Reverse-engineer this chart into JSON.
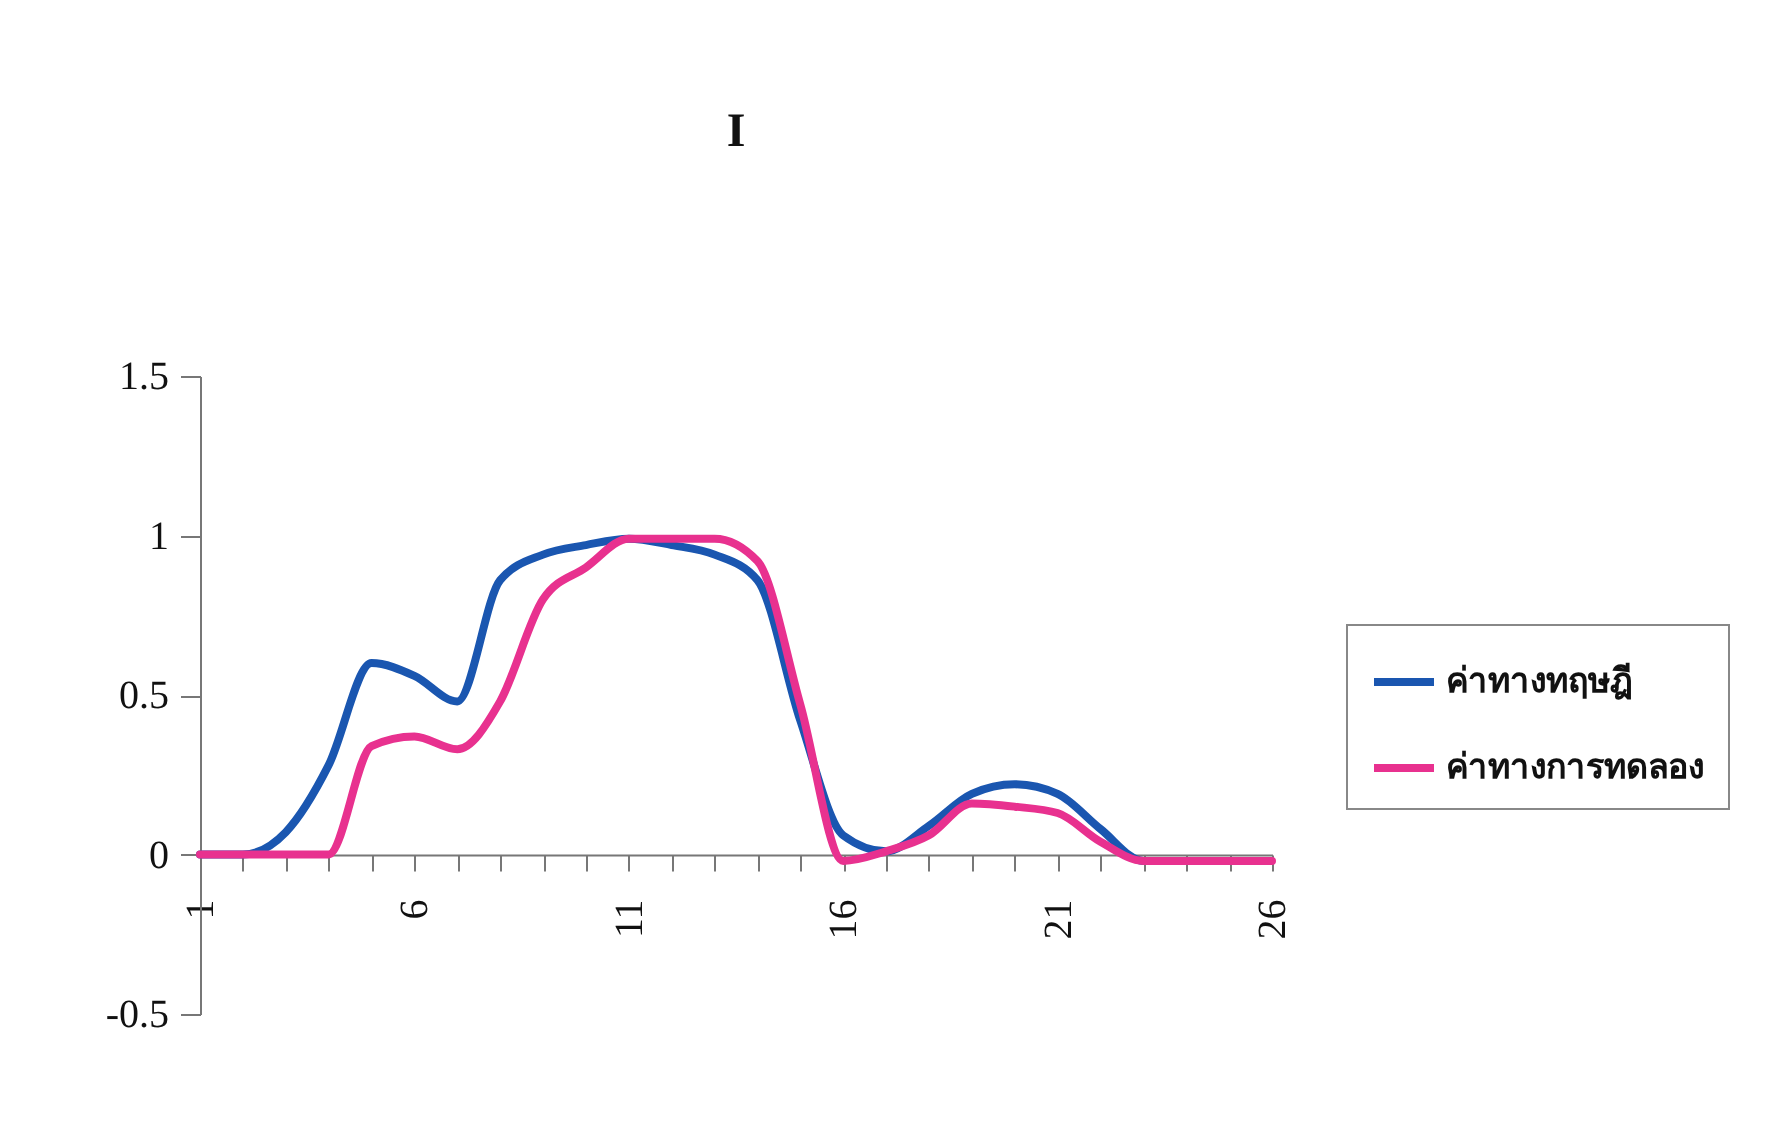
{
  "chart_data": {
    "type": "line",
    "title": "I",
    "x": [
      1,
      2,
      3,
      4,
      5,
      6,
      7,
      8,
      9,
      10,
      11,
      12,
      13,
      14,
      15,
      16,
      17,
      18,
      19,
      20,
      21,
      22,
      23,
      24,
      25,
      26
    ],
    "series": [
      {
        "name": "ค่าทางทฤษฎี",
        "color": "#1a56b0",
        "values": [
          0,
          0,
          0.07,
          0.28,
          0.6,
          0.56,
          0.48,
          0.86,
          0.94,
          0.97,
          0.99,
          0.97,
          0.94,
          0.86,
          0.42,
          0.06,
          0.01,
          0.09,
          0.19,
          0.22,
          0.19,
          0.08,
          -0.02,
          -0.02,
          null,
          null
        ]
      },
      {
        "name": "ค่าทางการทดลอง",
        "color": "#e8318f",
        "values": [
          0,
          0,
          0,
          0,
          0.34,
          0.37,
          0.33,
          0.48,
          0.8,
          0.9,
          0.99,
          0.99,
          0.99,
          0.92,
          0.47,
          -0.02,
          0.01,
          0.06,
          0.16,
          0.15,
          0.13,
          0.04,
          -0.02,
          -0.02,
          -0.02,
          -0.02
        ]
      }
    ],
    "xlim": [
      1,
      26
    ],
    "xticks": [
      1,
      {
        "value": 2,
        "label": null
      },
      {
        "value": 3,
        "label": null
      },
      {
        "value": 4,
        "label": null
      },
      {
        "value": 5,
        "label": null
      },
      6,
      {
        "value": 7,
        "label": null
      },
      {
        "value": 8,
        "label": null
      },
      {
        "value": 9,
        "label": null
      },
      {
        "value": 10,
        "label": null
      },
      11,
      {
        "value": 12,
        "label": null
      },
      {
        "value": 13,
        "label": null
      },
      {
        "value": 14,
        "label": null
      },
      {
        "value": 15,
        "label": null
      },
      16,
      {
        "value": 17,
        "label": null
      },
      {
        "value": 18,
        "label": null
      },
      {
        "value": 19,
        "label": null
      },
      {
        "value": 20,
        "label": null
      },
      21,
      {
        "value": 22,
        "label": null
      },
      {
        "value": 23,
        "label": null
      },
      {
        "value": 24,
        "label": null
      },
      {
        "value": 25,
        "label": null
      },
      26
    ],
    "ylim": [
      -0.5,
      1.5
    ],
    "yticks": [
      -0.5,
      0,
      0.5,
      1,
      1.5
    ],
    "legend": "right",
    "grid": false,
    "marker": "none",
    "line_style": "solid"
  }
}
